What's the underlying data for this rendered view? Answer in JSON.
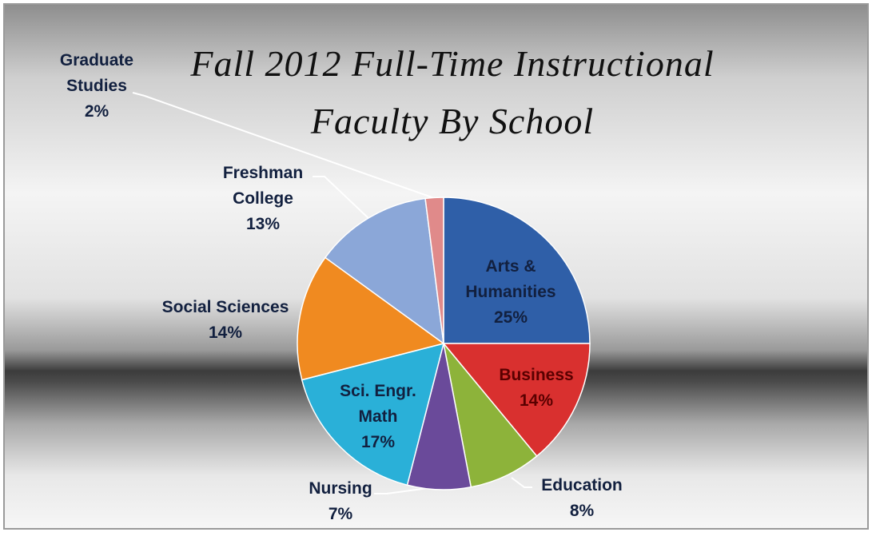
{
  "chart_data": {
    "type": "pie",
    "title": "Fall 2012 Full-Time Instructional Faculty By School",
    "categories": [
      "Arts & Humanities",
      "Business",
      "Education",
      "Nursing",
      "Sci. Engr. Math",
      "Social Sciences",
      "Freshman College",
      "Graduate Studies"
    ],
    "values": [
      25,
      14,
      8,
      7,
      17,
      14,
      13,
      2
    ],
    "value_labels": [
      "25%",
      "14%",
      "8%",
      "7%",
      "17%",
      "14%",
      "13%",
      "2%"
    ],
    "colors": [
      "#2f5fa8",
      "#d9302f",
      "#8db33a",
      "#6a4a9a",
      "#2ab0d8",
      "#f08a20",
      "#8ba7d8",
      "#e08a8a"
    ]
  }
}
